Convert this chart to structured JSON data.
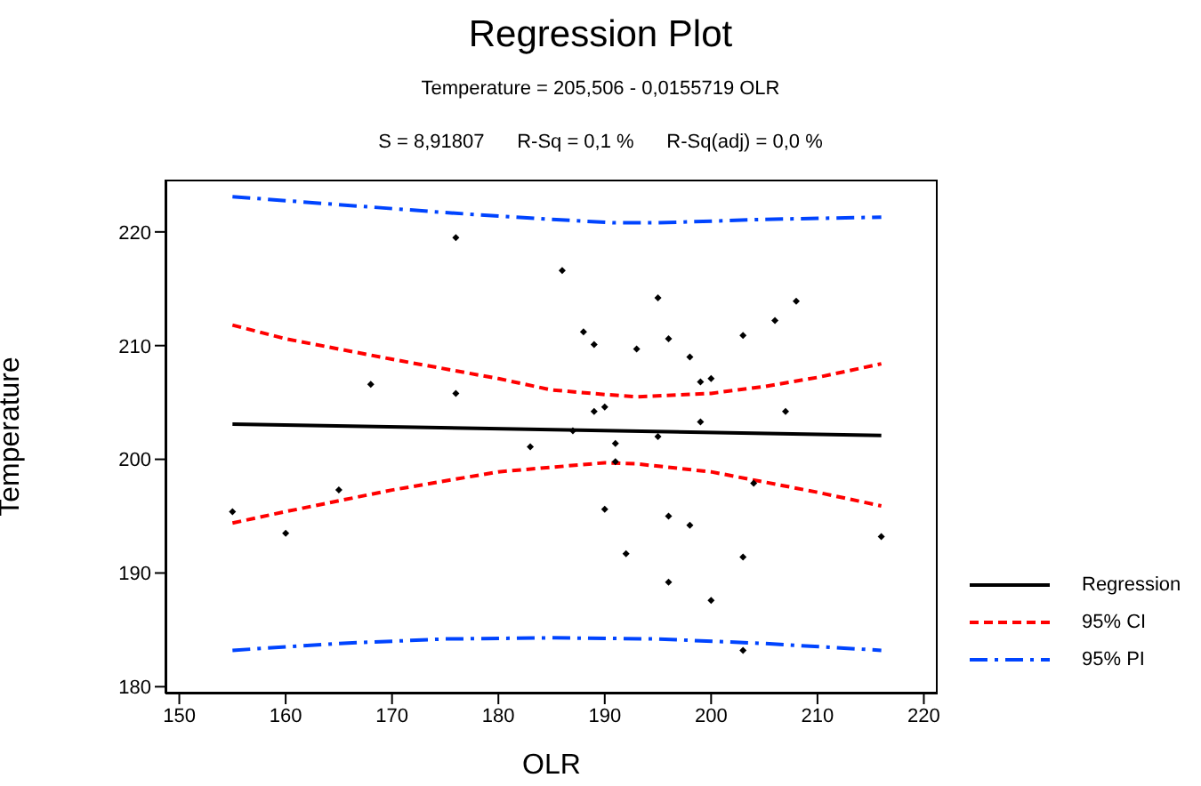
{
  "chart_data": {
    "type": "scatter",
    "title": "Regression Plot",
    "subtitle": "Temperature = 205,506 - 0,0155719 OLR",
    "annotations": [
      "S = 8,91807      R-Sq = 0,1 %      R-Sq(adj) = 0,0 %"
    ],
    "xlabel": "OLR",
    "ylabel": "Temperature",
    "xlim": [
      148.7,
      221.3
    ],
    "ylim": [
      179.4,
      224.6
    ],
    "xticks": [
      150,
      160,
      170,
      180,
      190,
      200,
      210,
      220
    ],
    "yticks": [
      180,
      190,
      200,
      210,
      220
    ],
    "grid": false,
    "legend": "right",
    "series": [
      {
        "color": "#000000",
        "marker": "diamond",
        "x": [
          155,
          160,
          165,
          168,
          176,
          176,
          183,
          186,
          188,
          189,
          193,
          195,
          196,
          198,
          199,
          200,
          203,
          206,
          208,
          189,
          190,
          187,
          191,
          195,
          199,
          207,
          191,
          204,
          190,
          196,
          198,
          216,
          192,
          203,
          196,
          200,
          203
        ],
        "values": [
          195.4,
          193.5,
          197.3,
          206.6,
          219.5,
          205.8,
          201.1,
          216.6,
          211.2,
          210.1,
          209.7,
          214.2,
          210.6,
          209.0,
          206.8,
          207.1,
          210.9,
          212.2,
          213.9,
          204.2,
          204.6,
          202.5,
          201.4,
          202.0,
          203.3,
          204.2,
          199.8,
          197.9,
          195.6,
          195.0,
          194.2,
          193.2,
          191.7,
          191.4,
          189.2,
          187.6,
          183.2
        ]
      },
      {
        "type": "line",
        "name": "Regression",
        "color": "#000000",
        "line_style": "solid",
        "marker": "none",
        "x": [
          155,
          216
        ],
        "values": [
          203.1,
          202.1
        ]
      },
      {
        "type": "line",
        "name": "95% CI",
        "color": "#ff0000",
        "line_style": "dashed",
        "marker": "none",
        "x": [
          155,
          160,
          170,
          180,
          185,
          190,
          193,
          200,
          205,
          210,
          216
        ],
        "values": [
          211.8,
          210.6,
          208.8,
          207.1,
          206.1,
          205.7,
          205.5,
          205.8,
          206.4,
          207.2,
          208.4
        ]
      },
      {
        "type": "line",
        "color": "#ff0000",
        "line_style": "dashed",
        "marker": "none",
        "x": [
          155,
          160,
          170,
          180,
          185,
          190,
          193,
          200,
          205,
          210,
          216
        ],
        "values": [
          194.4,
          195.4,
          197.3,
          198.9,
          199.3,
          199.7,
          199.6,
          198.9,
          198.0,
          197.1,
          195.9
        ]
      },
      {
        "type": "line",
        "name": "95% PI",
        "color": "#0044ff",
        "line_style": "dashdot",
        "marker": "none",
        "x": [
          155,
          165,
          175,
          185,
          191,
          195,
          205,
          216
        ],
        "values": [
          223.1,
          222.4,
          221.7,
          221.1,
          220.8,
          220.8,
          221.1,
          221.3
        ]
      },
      {
        "type": "line",
        "color": "#0044ff",
        "line_style": "dashdot",
        "marker": "none",
        "x": [
          155,
          165,
          175,
          185,
          195,
          205,
          216
        ],
        "values": [
          183.2,
          183.8,
          184.2,
          184.3,
          184.2,
          183.8,
          183.2
        ]
      }
    ]
  }
}
